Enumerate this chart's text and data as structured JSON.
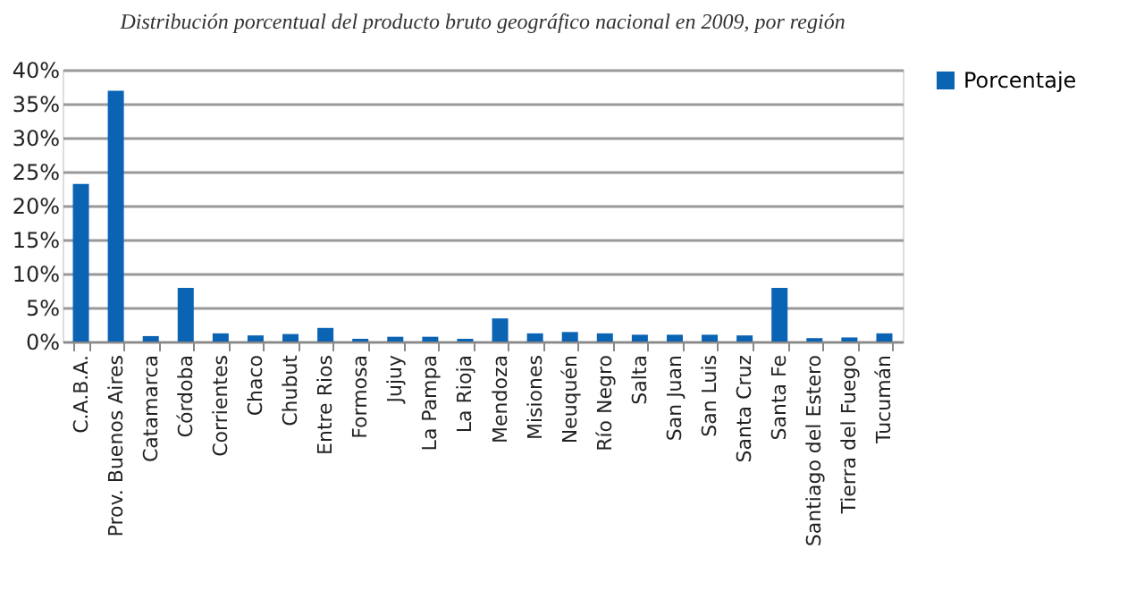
{
  "chart_data": {
    "type": "bar",
    "title": "Distribución porcentual del producto bruto geográfico nacional en 2009, por región",
    "categories": [
      "C.A.B.A.",
      "Prov. Buenos Aires",
      "Catamarca",
      "Córdoba",
      "Corrientes",
      "Chaco",
      "Chubut",
      "Entre Rios",
      "Formosa",
      "Jujuy",
      "La Pampa",
      "La Rioja",
      "Mendoza",
      "Misiones",
      "Neuquén",
      "Río Negro",
      "Salta",
      "San Juan",
      "San Luis",
      "Santa Cruz",
      "Santa Fe",
      "Santiago del Estero",
      "Tierra del Fuego",
      "Tucumán"
    ],
    "series": [
      {
        "name": "Porcentaje",
        "color": "#0b63b4",
        "values": [
          23.2,
          36.9,
          0.8,
          7.9,
          1.2,
          0.9,
          1.1,
          2.0,
          0.4,
          0.7,
          0.7,
          0.4,
          3.4,
          1.2,
          1.4,
          1.2,
          1.0,
          1.0,
          1.0,
          0.9,
          7.9,
          0.5,
          0.6,
          1.2
        ]
      }
    ],
    "ylim": [
      0,
      40
    ],
    "yticks": [
      {
        "value": 0,
        "label": "0%"
      },
      {
        "value": 5,
        "label": "5%"
      },
      {
        "value": 10,
        "label": "10%"
      },
      {
        "value": 15,
        "label": "15%"
      },
      {
        "value": 20,
        "label": "20%"
      },
      {
        "value": 25,
        "label": "25%"
      },
      {
        "value": 30,
        "label": "30%"
      },
      {
        "value": 35,
        "label": "35%"
      },
      {
        "value": 40,
        "label": "40%"
      }
    ],
    "grid": "y",
    "legend": "right"
  }
}
